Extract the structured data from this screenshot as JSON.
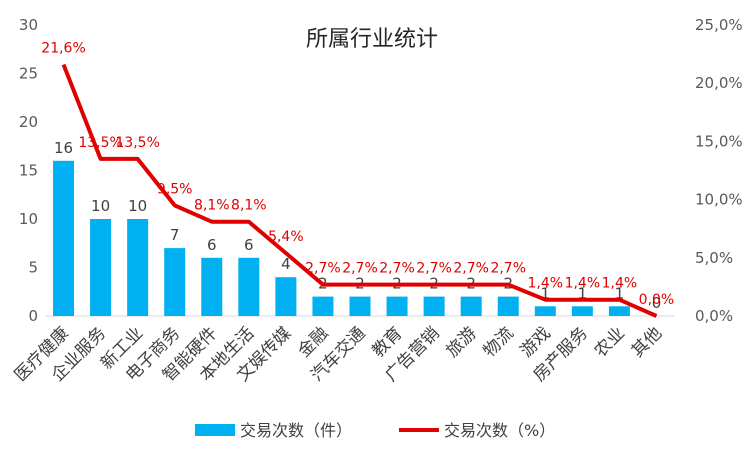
{
  "chart_data": {
    "type": "bar",
    "title": "所属行业统计",
    "categories": [
      "医疗健康",
      "企业服务",
      "新工业",
      "电子商务",
      "智能硬件",
      "本地生活",
      "文娱传媒",
      "金融",
      "汽车交通",
      "教育",
      "广告营销",
      "旅游",
      "物流",
      "游戏",
      "房产服务",
      "农业",
      "其他"
    ],
    "series": [
      {
        "name": "交易次数（件）",
        "type": "bar",
        "axis": "left",
        "color": "#00b0f0",
        "values": [
          16,
          10,
          10,
          7,
          6,
          6,
          4,
          2,
          2,
          2,
          2,
          2,
          2,
          1,
          1,
          1,
          0
        ],
        "labels": [
          "16",
          "10",
          "10",
          "7",
          "6",
          "6",
          "4",
          "2",
          "2",
          "2",
          "2",
          "2",
          "2",
          "1",
          "1",
          "1",
          "0"
        ]
      },
      {
        "name": "交易次数（%）",
        "type": "line",
        "axis": "right",
        "color": "#e00000",
        "values": [
          21.6,
          13.5,
          13.5,
          9.5,
          8.1,
          8.1,
          5.4,
          2.7,
          2.7,
          2.7,
          2.7,
          2.7,
          2.7,
          1.4,
          1.4,
          1.4,
          0.0
        ],
        "labels": [
          "21,6%",
          "13,5%",
          "13,5%",
          "9,5%",
          "8,1%",
          "8,1%",
          "5,4%",
          "2,7%",
          "2,7%",
          "2,7%",
          "2,7%",
          "2,7%",
          "2,7%",
          "1,4%",
          "1,4%",
          "1,4%",
          "0,0%"
        ]
      }
    ],
    "y_left": {
      "ylim": [
        0,
        30
      ],
      "ticks": [
        0,
        5,
        10,
        15,
        20,
        25,
        30
      ],
      "tick_labels": [
        "0",
        "5",
        "10",
        "15",
        "20",
        "25",
        "30"
      ]
    },
    "y_right": {
      "ylim": [
        0,
        25
      ],
      "ticks": [
        0,
        5,
        10,
        15,
        20,
        25
      ],
      "tick_labels": [
        "0,0%",
        "5,0%",
        "10,0%",
        "15,0%",
        "20,0%",
        "25,0%"
      ]
    },
    "grid": false,
    "legend": {
      "position": "bottom",
      "entries": [
        "交易次数（件）",
        "交易次数（%）"
      ]
    }
  }
}
